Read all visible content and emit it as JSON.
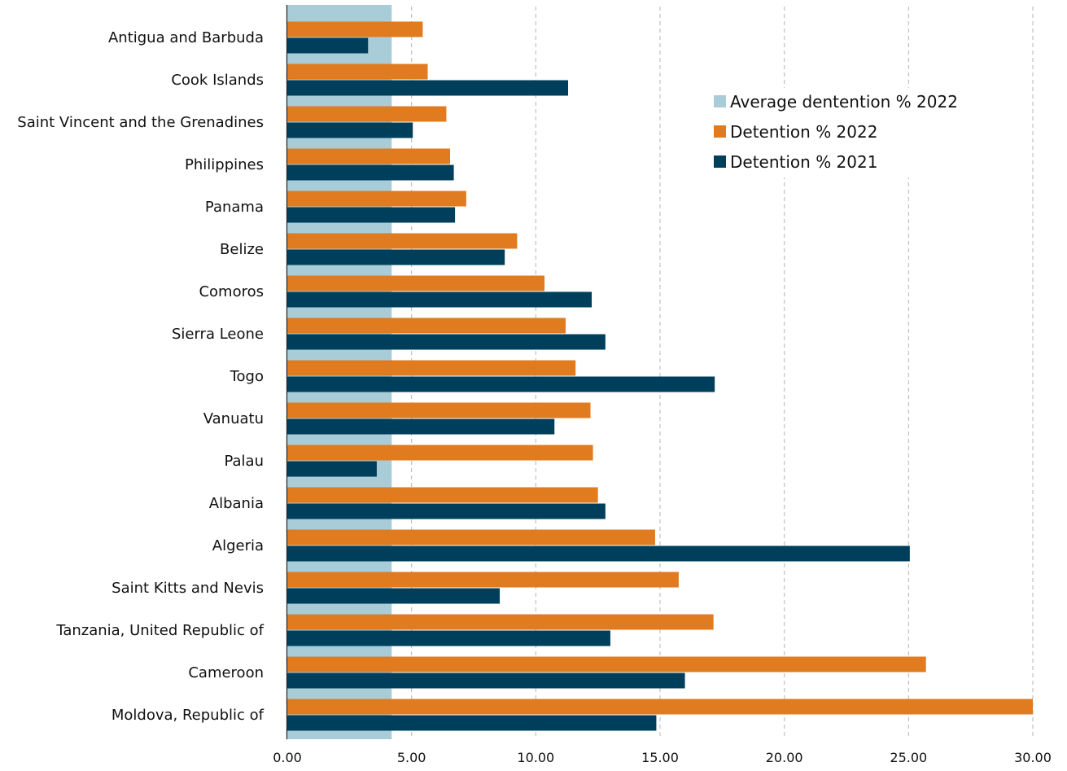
{
  "chart_data": {
    "type": "bar",
    "orientation": "horizontal",
    "categories": [
      "Antigua and Barbuda",
      "Cook Islands",
      "Saint Vincent and the Grenadines",
      "Philippines",
      "Panama",
      "Belize",
      "Comoros",
      "Sierra Leone",
      "Togo",
      "Vanuatu",
      "Palau",
      "Albania",
      "Algeria",
      "Saint Kitts and Nevis",
      "Tanzania, United Republic of",
      "Cameroon",
      "Moldova, Republic of"
    ],
    "series": [
      {
        "name": "Average dentention % 2022",
        "color": "#a9cdd8",
        "value": 4.2,
        "style": "background-band"
      },
      {
        "name": "Detention % 2022",
        "color": "#e07b1f",
        "values": [
          5.45,
          5.65,
          6.4,
          6.55,
          7.2,
          9.25,
          10.35,
          11.2,
          11.6,
          12.2,
          12.3,
          12.5,
          14.8,
          15.75,
          17.15,
          25.7,
          30.0
        ]
      },
      {
        "name": "Detention % 2021",
        "color": "#003f5c",
        "values": [
          3.25,
          11.3,
          5.05,
          6.7,
          6.75,
          8.75,
          12.25,
          12.8,
          17.2,
          10.75,
          3.6,
          12.8,
          25.05,
          8.55,
          13.0,
          16.0,
          14.85
        ]
      }
    ],
    "xlim": [
      0,
      30
    ],
    "xticks": [
      "0.00",
      "5.00",
      "10.00",
      "15.00",
      "20.00",
      "25.00",
      "30.00"
    ],
    "grid": "vertical dashed",
    "legend": "top-right"
  }
}
